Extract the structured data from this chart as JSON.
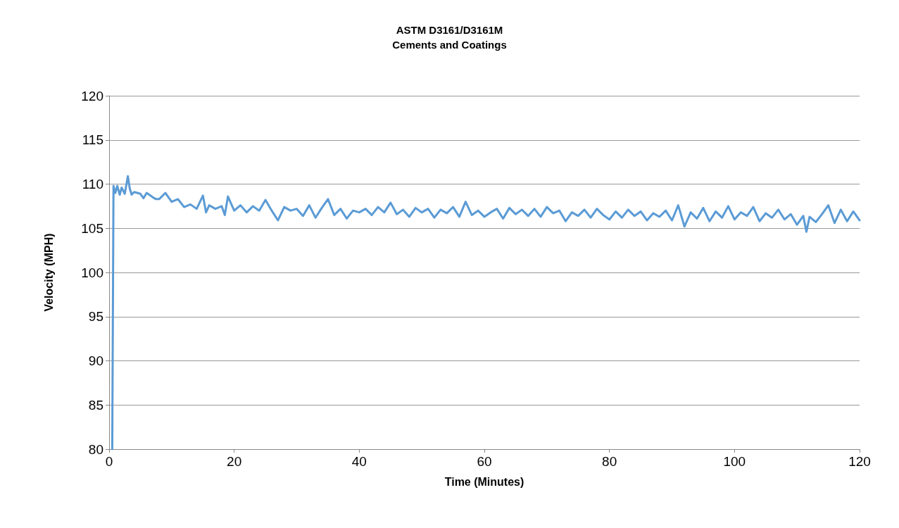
{
  "chart_data": {
    "type": "line",
    "title": "ASTM D3161/D3161M",
    "subtitle": "Cements and Coatings",
    "xlabel": "Time (Minutes)",
    "ylabel": "Velocity (MPH)",
    "xlim": [
      0,
      120
    ],
    "xticks": [
      0,
      20,
      40,
      60,
      80,
      100,
      120
    ],
    "ylim": [
      80,
      120
    ],
    "yticks": [
      80,
      85,
      90,
      95,
      100,
      105,
      110,
      115,
      120
    ],
    "grid": "y",
    "marker": "none",
    "line_style": "solid",
    "series": [
      {
        "color": "#5b9bd5",
        "x": [
          0.5,
          0.7,
          1.0,
          1.3,
          1.7,
          2.0,
          2.5,
          3.0,
          3.3,
          3.6,
          4,
          5,
          5.5,
          6,
          7,
          7.5,
          8,
          9,
          10,
          11,
          12,
          13,
          14,
          15,
          15.5,
          16,
          17,
          18,
          18.5,
          19,
          20,
          21,
          22,
          23,
          24,
          25,
          26,
          27,
          28,
          29,
          30,
          31,
          32,
          33,
          34,
          35,
          36,
          37,
          38,
          39,
          40,
          41,
          42,
          43,
          44,
          45,
          46,
          47,
          48,
          49,
          50,
          51,
          52,
          53,
          54,
          55,
          56,
          57,
          58,
          59,
          60,
          61,
          62,
          63,
          64,
          65,
          66,
          67,
          68,
          69,
          70,
          71,
          72,
          73,
          74,
          75,
          76,
          77,
          78,
          79,
          80,
          81,
          82,
          83,
          84,
          85,
          86,
          87,
          88,
          89,
          90,
          91,
          92,
          93,
          94,
          95,
          96,
          97,
          98,
          99,
          100,
          101,
          102,
          103,
          104,
          105,
          106,
          107,
          108,
          109,
          110,
          111,
          111.5,
          112,
          113,
          114,
          115,
          116,
          117,
          118,
          119,
          120
        ],
        "values": [
          80,
          109.8,
          109,
          109.8,
          108.8,
          109.6,
          108.9,
          110.9,
          109.5,
          108.8,
          109.1,
          108.9,
          108.4,
          109,
          108.5,
          108.3,
          108.3,
          109,
          108,
          108.3,
          107.4,
          107.7,
          107.2,
          108.7,
          106.8,
          107.6,
          107.2,
          107.5,
          106.5,
          108.6,
          107,
          107.6,
          106.8,
          107.5,
          107,
          108.2,
          107,
          105.9,
          107.4,
          107,
          107.2,
          106.4,
          107.6,
          106.2,
          107.3,
          108.3,
          106.5,
          107.2,
          106.1,
          107,
          106.8,
          107.2,
          106.5,
          107.4,
          106.8,
          107.9,
          106.6,
          107.1,
          106.3,
          107.3,
          106.8,
          107.2,
          106.2,
          107.1,
          106.7,
          107.4,
          106.3,
          108,
          106.5,
          107,
          106.3,
          106.8,
          107.2,
          106.1,
          107.3,
          106.6,
          107.1,
          106.4,
          107.2,
          106.3,
          107.4,
          106.7,
          107,
          105.8,
          106.8,
          106.4,
          107.1,
          106.2,
          107.2,
          106.5,
          106,
          106.9,
          106.2,
          107.1,
          106.4,
          106.9,
          105.9,
          106.7,
          106.3,
          107,
          105.9,
          107.6,
          105.2,
          106.8,
          106.1,
          107.3,
          105.8,
          106.9,
          106.2,
          107.5,
          106,
          106.8,
          106.4,
          107.4,
          105.8,
          106.7,
          106.2,
          107.1,
          106,
          106.6,
          105.4,
          106.4,
          104.6,
          106.3,
          105.7,
          106.6,
          107.6,
          105.6,
          107.1,
          105.8,
          106.9,
          105.9
        ]
      }
    ]
  }
}
